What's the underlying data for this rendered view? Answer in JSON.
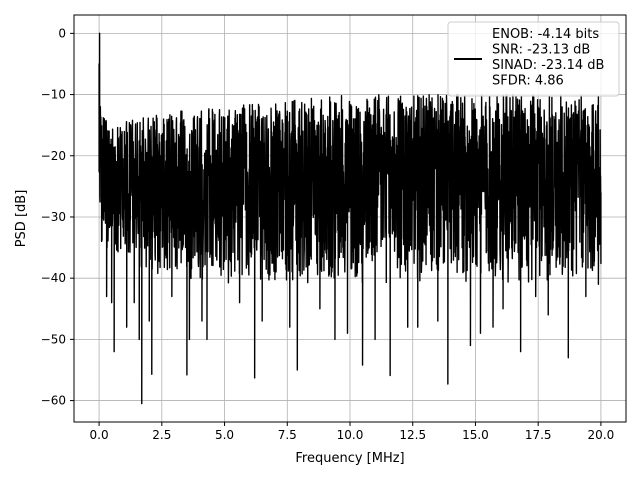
{
  "chart_data": {
    "type": "line",
    "title": "",
    "xlabel": "Frequency [MHz]",
    "ylabel": "PSD [dB]",
    "xlim": [
      -1.0,
      21.0
    ],
    "ylim": [
      -63.5,
      3.0
    ],
    "xticks": [
      0.0,
      2.5,
      5.0,
      7.5,
      10.0,
      12.5,
      15.0,
      17.5,
      20.0
    ],
    "xtick_labels": [
      "0.0",
      "2.5",
      "5.0",
      "7.5",
      "10.0",
      "12.5",
      "15.0",
      "17.5",
      "20.0"
    ],
    "yticks": [
      0,
      -10,
      -20,
      -30,
      -40,
      -50,
      -60
    ],
    "ytick_labels": [
      "0",
      "−10",
      "−20",
      "−30",
      "−40",
      "−50",
      "−60"
    ],
    "grid": true,
    "legend": {
      "placement": "top-right",
      "lines": [
        "ENOB: -4.14 bits",
        "SNR: -23.13 dB",
        "SINAD: -23.14 dB",
        "SFDR: 4.86"
      ]
    },
    "series": [
      {
        "color": "#000000",
        "x_range": [
          0.0,
          20.0
        ],
        "noise_band": {
          "upper_envelope": [
            [
              0.0,
              -13
            ],
            [
              0.5,
              -15
            ],
            [
              2.5,
              -13
            ],
            [
              5.0,
              -12
            ],
            [
              10.0,
              -10
            ],
            [
              15.0,
              -10
            ],
            [
              20.0,
              -10
            ]
          ],
          "lower_envelope": [
            [
              0.0,
              -35
            ],
            [
              2.5,
              -40
            ],
            [
              5.0,
              -41
            ],
            [
              10.0,
              -41
            ],
            [
              15.0,
              -41
            ],
            [
              20.0,
              -41
            ]
          ]
        },
        "points": [
          [
            0.0,
            -5.0
          ],
          [
            0.02,
            0.0
          ],
          [
            0.05,
            -12.0
          ],
          [
            0.1,
            -34.0
          ],
          [
            0.15,
            -24.0
          ],
          [
            0.3,
            -43.0
          ],
          [
            0.5,
            -44.0
          ],
          [
            0.6,
            -52.0
          ],
          [
            1.1,
            -48.0
          ],
          [
            1.4,
            -44.0
          ],
          [
            1.6,
            -50.0
          ],
          [
            1.7,
            -60.5
          ],
          [
            2.0,
            -47.0
          ],
          [
            2.1,
            -55.7
          ],
          [
            2.9,
            -43.0
          ],
          [
            3.5,
            -55.8
          ],
          [
            3.6,
            -50.0
          ],
          [
            4.1,
            -47.0
          ],
          [
            4.3,
            -50.0
          ],
          [
            5.6,
            -44.0
          ],
          [
            6.2,
            -56.3
          ],
          [
            6.5,
            -47.0
          ],
          [
            7.6,
            -48.0
          ],
          [
            7.9,
            -55.0
          ],
          [
            8.8,
            -45.0
          ],
          [
            9.4,
            -50.0
          ],
          [
            9.9,
            -49.0
          ],
          [
            10.5,
            -54.2
          ],
          [
            11.0,
            -50.0
          ],
          [
            11.6,
            -55.9
          ],
          [
            12.3,
            -48.0
          ],
          [
            12.7,
            -48.0
          ],
          [
            13.5,
            -47.0
          ],
          [
            13.9,
            -57.3
          ],
          [
            14.8,
            -51.0
          ],
          [
            15.2,
            -49.0
          ],
          [
            15.7,
            -48.0
          ],
          [
            16.1,
            -45.0
          ],
          [
            16.8,
            -52.0
          ],
          [
            17.4,
            -43.0
          ],
          [
            17.9,
            -46.0
          ],
          [
            18.7,
            -53.0
          ],
          [
            19.4,
            -43.0
          ],
          [
            19.9,
            -41.0
          ],
          [
            20.0,
            -26.0
          ]
        ]
      }
    ]
  }
}
